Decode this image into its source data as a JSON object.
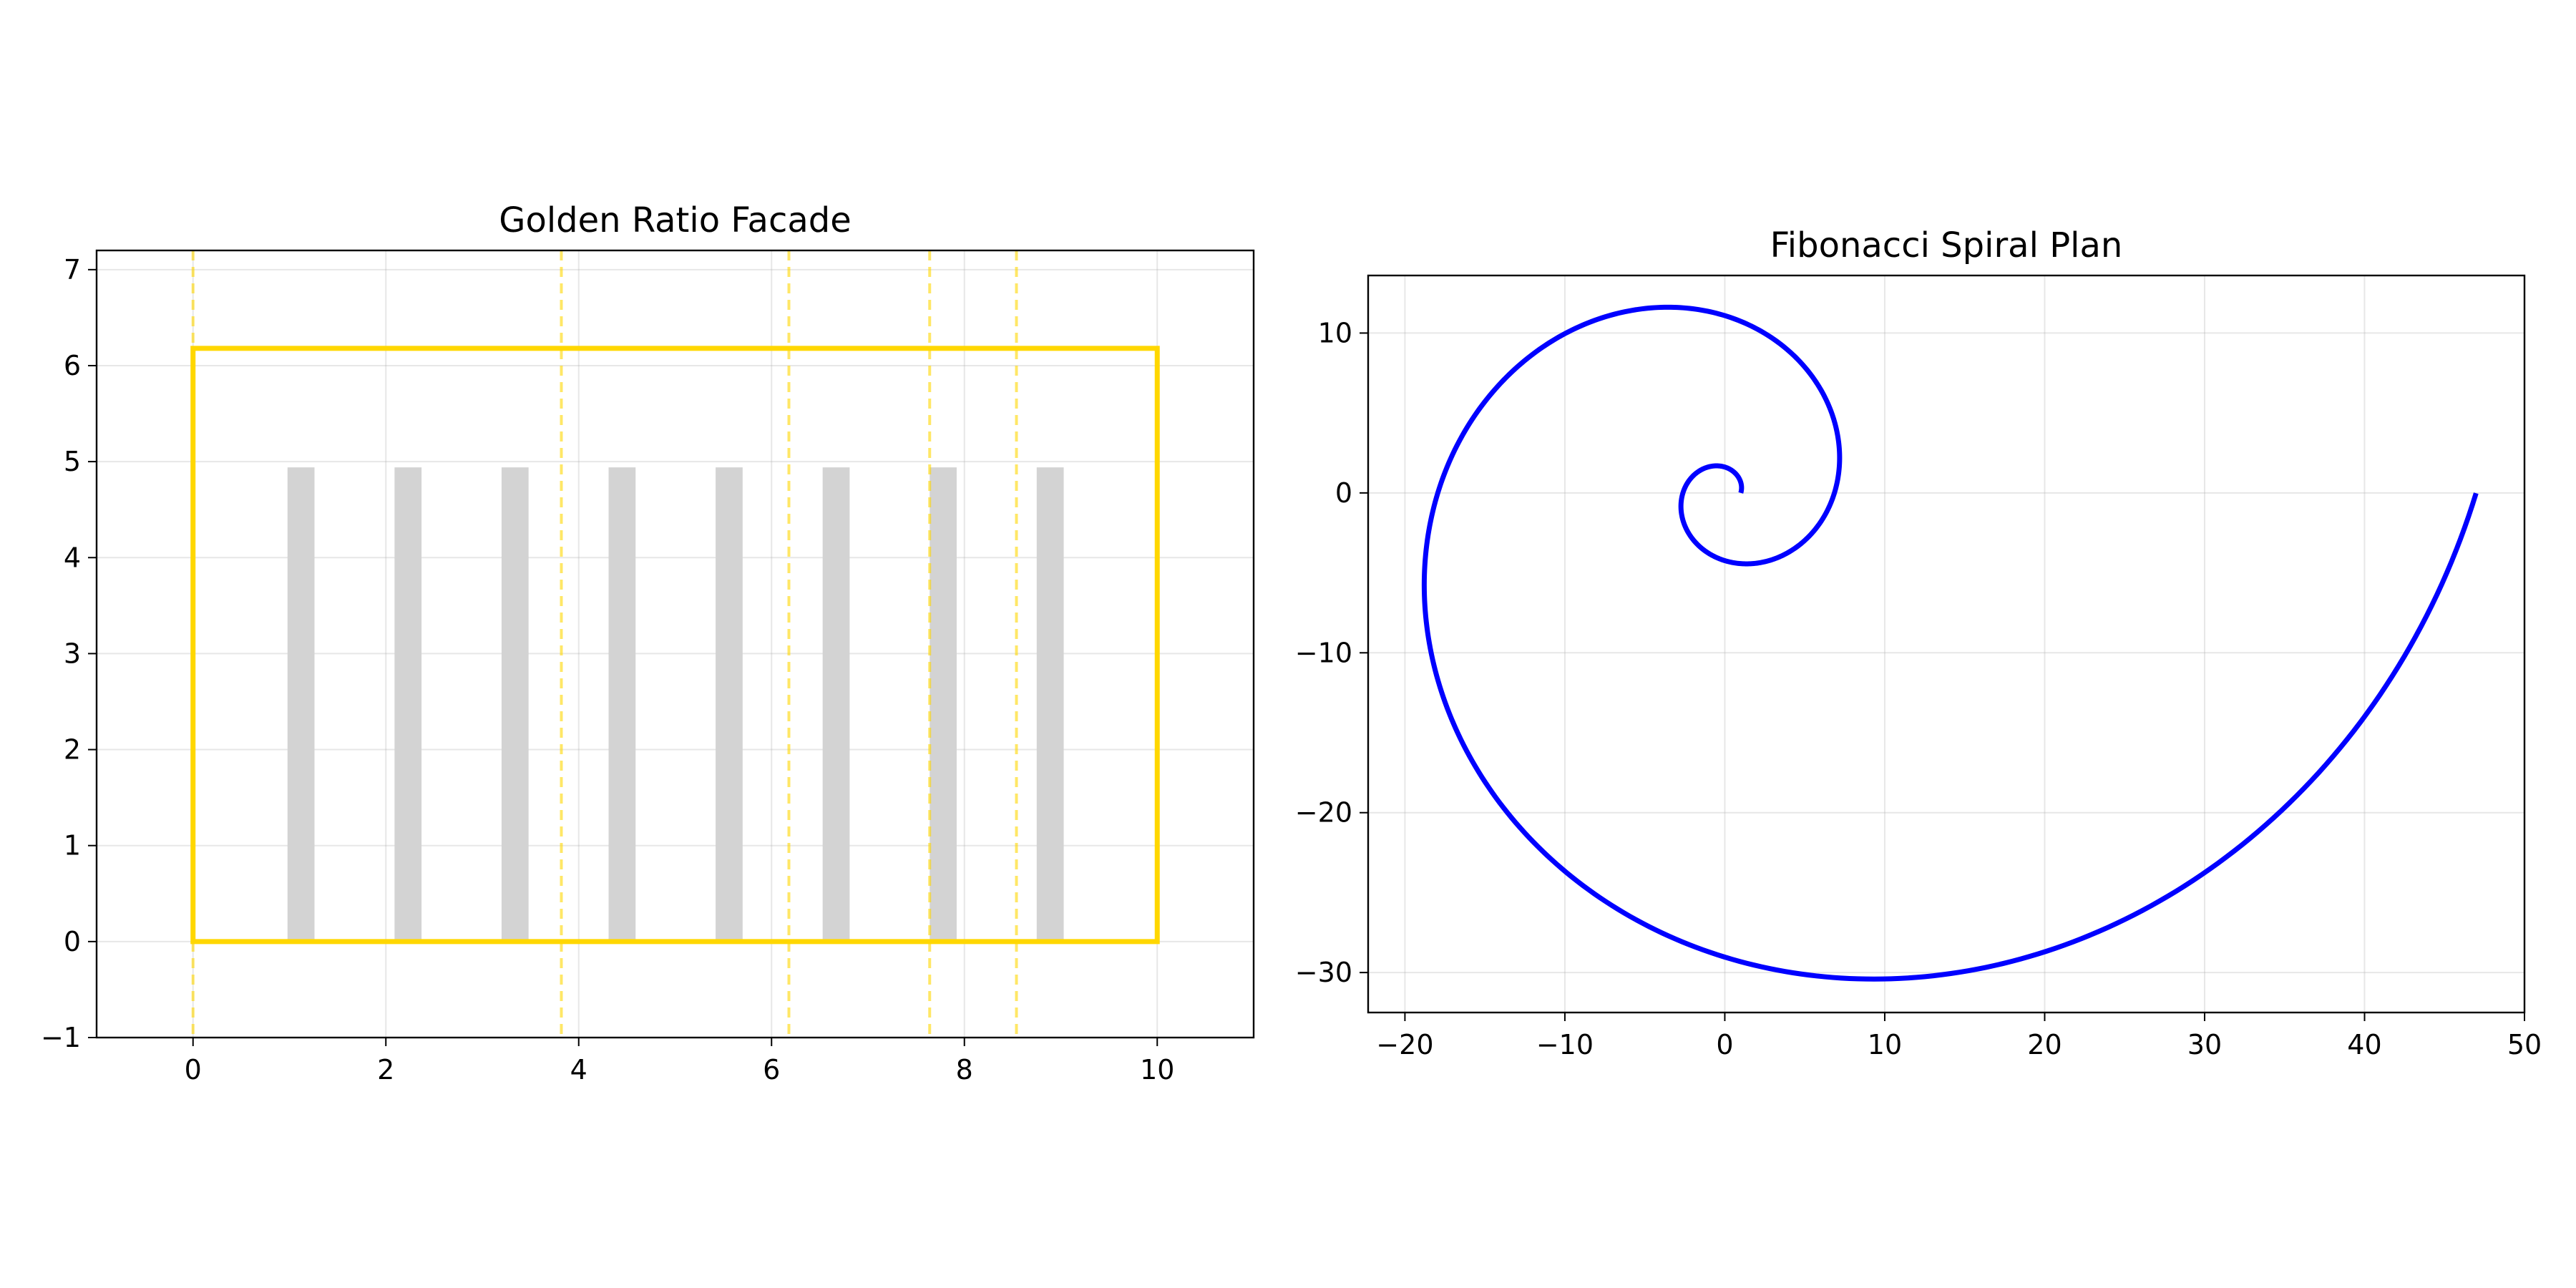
{
  "chart_data": [
    {
      "type": "line",
      "title": "Golden Ratio Facade",
      "xlabel": "",
      "ylabel": "",
      "xlim": [
        -1,
        11
      ],
      "ylim": [
        -1,
        7.2
      ],
      "grid": true,
      "xticks": [
        0,
        2,
        4,
        6,
        8,
        10
      ],
      "yticks": [
        -1,
        0,
        1,
        2,
        3,
        4,
        5,
        6,
        7
      ],
      "xtick_labels": [
        "0",
        "2",
        "4",
        "6",
        "8",
        "10"
      ],
      "ytick_labels": [
        "−1",
        "0",
        "1",
        "2",
        "3",
        "4",
        "5",
        "6",
        "7"
      ],
      "facade": {
        "x": [
          0,
          10
        ],
        "y": [
          0,
          6.18
        ],
        "color": "#FFD700"
      },
      "windows": {
        "x_start": [
          0.98,
          2.09,
          3.2,
          4.31,
          5.42,
          6.53,
          7.64,
          8.75
        ],
        "width": 0.28,
        "y_bottom": 0,
        "y_top": 4.94,
        "color": "#D3D3D3"
      },
      "golden_lines": {
        "x": [
          0,
          3.82,
          6.18,
          7.64,
          8.54
        ],
        "color": "#FFD700",
        "style": "dashed"
      }
    },
    {
      "type": "line",
      "title": "Fibonacci Spiral Plan",
      "xlabel": "",
      "ylabel": "",
      "xlim": [
        -22.3,
        50
      ],
      "ylim": [
        -32.5,
        13.6
      ],
      "grid": true,
      "xticks": [
        -20,
        -10,
        0,
        10,
        20,
        30,
        40,
        50
      ],
      "yticks": [
        -30,
        -20,
        -10,
        0,
        10
      ],
      "xtick_labels": [
        "−20",
        "−10",
        "0",
        "10",
        "20",
        "30",
        "40",
        "50"
      ],
      "ytick_labels": [
        "−30",
        "−20",
        "−10",
        "0",
        "10"
      ],
      "spiral": {
        "equation": "r = phi^(2*theta/pi)",
        "phi": 1.618034,
        "theta_range": [
          0,
          12.566
        ],
        "color": "#0000FF"
      }
    }
  ]
}
